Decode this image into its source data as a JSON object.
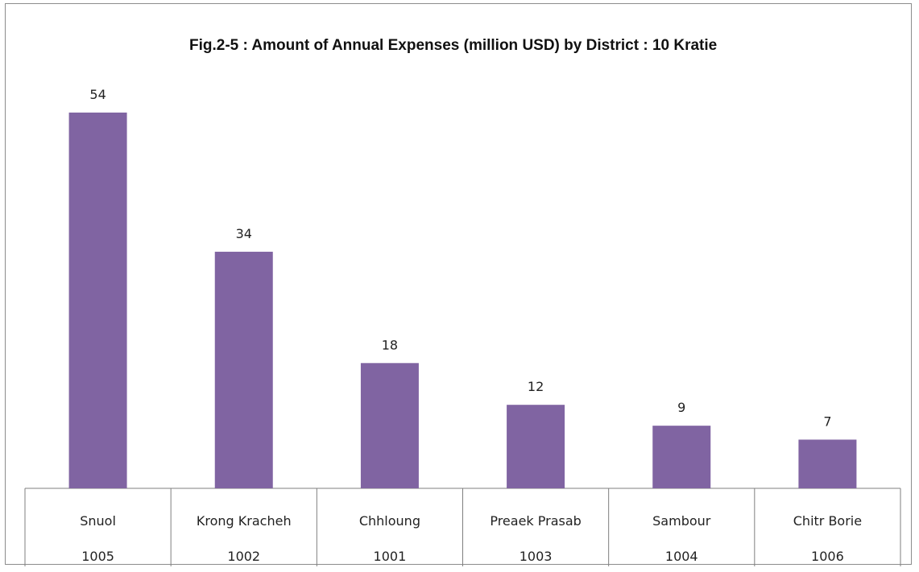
{
  "chart_data": {
    "type": "bar",
    "title": "Fig.2-5 : Amount of Annual Expenses (million USD) by District : 10 Kratie",
    "categories": [
      "Snuol",
      "Krong Kracheh",
      "Chhloung",
      "Preaek Prasab",
      "Sambour",
      "Chitr Borie"
    ],
    "codes": [
      "1005",
      "1002",
      "1001",
      "1003",
      "1004",
      "1006"
    ],
    "values": [
      54,
      34,
      18,
      12,
      9,
      7
    ],
    "data_labels": [
      "54",
      "34",
      "18",
      "12",
      "9",
      "7"
    ],
    "bar_color": "#8064a2",
    "legend": "none",
    "grid": false
  }
}
